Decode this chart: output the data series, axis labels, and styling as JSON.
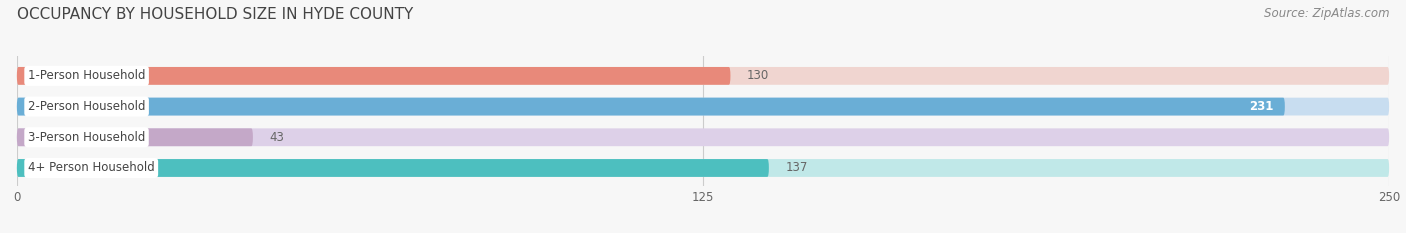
{
  "title": "OCCUPANCY BY HOUSEHOLD SIZE IN HYDE COUNTY",
  "source": "Source: ZipAtlas.com",
  "categories": [
    "1-Person Household",
    "2-Person Household",
    "3-Person Household",
    "4+ Person Household"
  ],
  "values": [
    130,
    231,
    43,
    137
  ],
  "bar_colors": [
    "#E8897A",
    "#6AAED6",
    "#C4A8C8",
    "#4DBFBF"
  ],
  "bar_bg_colors": [
    "#F0D5D0",
    "#C8DDF0",
    "#DDD0E8",
    "#C0E8E8"
  ],
  "xlim": [
    0,
    250
  ],
  "xticks": [
    0,
    125,
    250
  ],
  "title_fontsize": 11,
  "source_fontsize": 8.5,
  "label_fontsize": 8.5,
  "value_fontsize": 8.5,
  "background_color": "#F7F7F7",
  "title_color": "#444444",
  "source_color": "#888888",
  "label_color": "#444444",
  "value_color_inside": "#FFFFFF",
  "value_color_outside": "#666666",
  "grid_color": "#CCCCCC",
  "bar_height": 0.58
}
